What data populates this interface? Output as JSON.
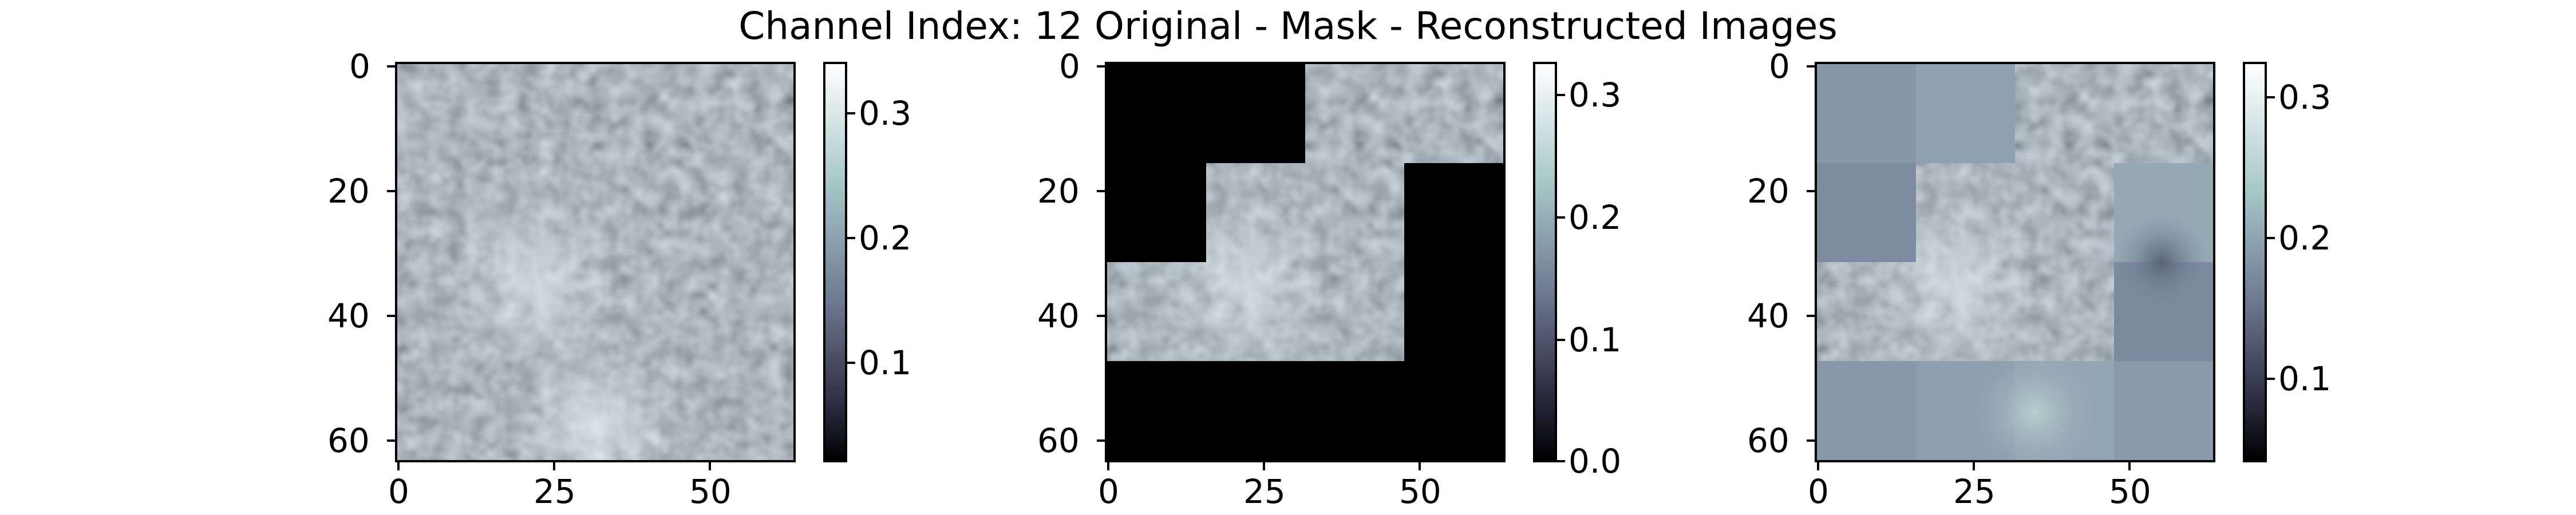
{
  "title": "Channel Index: 12 Original - Mask - Reconstructed Images",
  "colormap": "bone",
  "panels": [
    {
      "id": "original",
      "x_ticks": [
        "0",
        "25",
        "50"
      ],
      "y_ticks": [
        "0",
        "20",
        "40",
        "60"
      ],
      "colorbar": {
        "labels": [
          "0.3",
          "0.2",
          "0.1"
        ],
        "range": [
          0.03,
          0.33
        ]
      }
    },
    {
      "id": "mask",
      "x_ticks": [
        "0",
        "25",
        "50"
      ],
      "y_ticks": [
        "0",
        "20",
        "40",
        "60"
      ],
      "colorbar": {
        "labels": [
          "0.3",
          "0.2",
          "0.1",
          "0.0"
        ],
        "range": [
          0.0,
          0.32
        ]
      }
    },
    {
      "id": "reconstructed",
      "x_ticks": [
        "0",
        "25",
        "50"
      ],
      "y_ticks": [
        "0",
        "20",
        "40",
        "60"
      ],
      "colorbar": {
        "labels": [
          "0.3",
          "0.2",
          "0.1"
        ],
        "range": [
          0.04,
          0.32
        ]
      }
    }
  ]
}
